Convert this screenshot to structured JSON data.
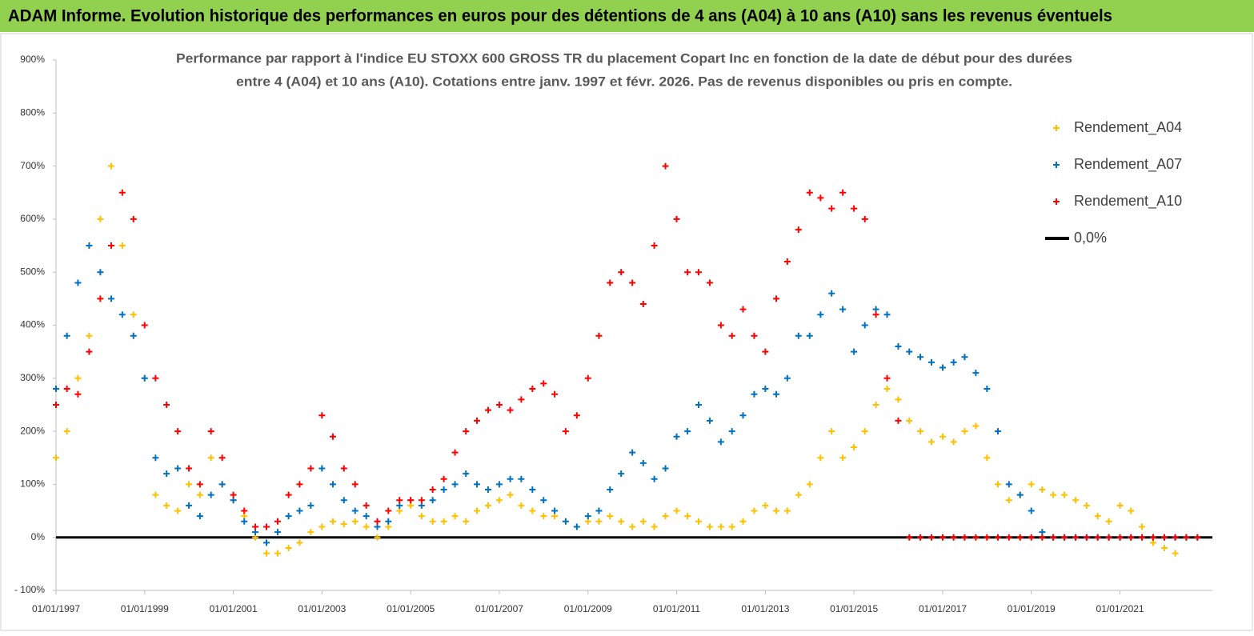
{
  "header": {
    "title": "ADAM Informe. Evolution historique des performances en euros pour des détentions de 4 ans (A04) à 10 ans (A10) sans les revenus éventuels"
  },
  "chart_data": {
    "type": "scatter",
    "title": "Performance par rapport à l'indice EU STOXX 600 GROSS TR  du placement Copart Inc en fonction de la date de début pour des durées",
    "subtitle": "entre 4 (A04) et 10 ans (A10). Cotations entre janv. 1997 et févr. 2026. Pas de revenus disponibles ou pris en compte.",
    "x": [
      "1997-01-01",
      "1997-04-01",
      "1997-07-01",
      "1997-10-01",
      "1998-01-01",
      "1998-04-01",
      "1998-07-01",
      "1998-10-01",
      "1999-01-01",
      "1999-04-01",
      "1999-07-01",
      "1999-10-01",
      "2000-01-01",
      "2000-04-01",
      "2000-07-01",
      "2000-10-01",
      "2001-01-01",
      "2001-04-01",
      "2001-07-01",
      "2001-10-01",
      "2002-01-01",
      "2002-04-01",
      "2002-07-01",
      "2002-10-01",
      "2003-01-01",
      "2003-04-01",
      "2003-07-01",
      "2003-10-01",
      "2004-01-01",
      "2004-04-01",
      "2004-07-01",
      "2004-10-01",
      "2005-01-01",
      "2005-04-01",
      "2005-07-01",
      "2005-10-01",
      "2006-01-01",
      "2006-04-01",
      "2006-07-01",
      "2006-10-01",
      "2007-01-01",
      "2007-04-01",
      "2007-07-01",
      "2007-10-01",
      "2008-01-01",
      "2008-04-01",
      "2008-07-01",
      "2008-10-01",
      "2009-01-01",
      "2009-04-01",
      "2009-07-01",
      "2009-10-01",
      "2010-01-01",
      "2010-04-01",
      "2010-07-01",
      "2010-10-01",
      "2011-01-01",
      "2011-04-01",
      "2011-07-01",
      "2011-10-01",
      "2012-01-01",
      "2012-04-01",
      "2012-07-01",
      "2012-10-01",
      "2013-01-01",
      "2013-04-01",
      "2013-07-01",
      "2013-10-01",
      "2014-01-01",
      "2014-04-01",
      "2014-07-01",
      "2014-10-01",
      "2015-01-01",
      "2015-04-01",
      "2015-07-01",
      "2015-10-01",
      "2016-01-01",
      "2016-04-01",
      "2016-07-01",
      "2016-10-01",
      "2017-01-01",
      "2017-04-01",
      "2017-07-01",
      "2017-10-01",
      "2018-01-01",
      "2018-04-01",
      "2018-07-01",
      "2018-10-01",
      "2019-01-01",
      "2019-04-01",
      "2019-07-01",
      "2019-10-01",
      "2020-01-01",
      "2020-04-01",
      "2020-07-01",
      "2020-10-01",
      "2021-01-01",
      "2021-04-01",
      "2021-07-01",
      "2021-10-01",
      "2022-01-01",
      "2022-04-01",
      "2022-07-01",
      "2022-10-01"
    ],
    "series": [
      {
        "name": "Rendement_A04",
        "color": "#ffc000",
        "values": [
          150,
          200,
          300,
          380,
          600,
          700,
          550,
          420,
          300,
          80,
          60,
          50,
          100,
          80,
          150,
          100,
          70,
          40,
          0,
          -30,
          -30,
          -20,
          -10,
          10,
          20,
          30,
          25,
          30,
          20,
          0,
          20,
          50,
          60,
          40,
          30,
          30,
          40,
          30,
          50,
          60,
          70,
          80,
          60,
          50,
          40,
          40,
          30,
          20,
          30,
          30,
          40,
          30,
          20,
          30,
          20,
          40,
          50,
          40,
          30,
          20,
          20,
          20,
          30,
          50,
          60,
          50,
          50,
          80,
          100,
          150,
          200,
          150,
          170,
          200,
          250,
          280,
          260,
          220,
          200,
          180,
          190,
          180,
          200,
          210,
          150,
          100,
          70,
          80,
          100,
          90,
          80,
          80,
          70,
          60,
          40,
          30,
          60,
          50,
          20,
          -10,
          -20,
          -30,
          null,
          null
        ]
      },
      {
        "name": "Rendement_A07",
        "color": "#0070c0",
        "values": [
          280,
          380,
          480,
          550,
          500,
          450,
          420,
          380,
          300,
          150,
          120,
          130,
          60,
          40,
          80,
          100,
          70,
          30,
          10,
          -10,
          10,
          40,
          50,
          60,
          130,
          100,
          70,
          50,
          40,
          20,
          30,
          60,
          70,
          60,
          70,
          90,
          100,
          120,
          100,
          90,
          100,
          110,
          110,
          90,
          70,
          50,
          30,
          20,
          40,
          50,
          90,
          120,
          160,
          140,
          110,
          130,
          190,
          200,
          250,
          220,
          180,
          200,
          230,
          270,
          280,
          270,
          300,
          380,
          380,
          420,
          460,
          430,
          350,
          400,
          430,
          420,
          360,
          350,
          340,
          330,
          320,
          330,
          340,
          310,
          280,
          200,
          100,
          80,
          50,
          10,
          0,
          0,
          0,
          0,
          0,
          0,
          0,
          0,
          0,
          0,
          0,
          0,
          0,
          0
        ]
      },
      {
        "name": "Rendement_A10",
        "color": "#ff0000",
        "values": [
          250,
          280,
          270,
          350,
          450,
          550,
          650,
          600,
          400,
          300,
          250,
          200,
          130,
          100,
          200,
          150,
          80,
          50,
          20,
          20,
          30,
          80,
          100,
          130,
          230,
          190,
          130,
          100,
          60,
          30,
          50,
          70,
          70,
          70,
          90,
          110,
          160,
          200,
          220,
          240,
          250,
          240,
          260,
          280,
          290,
          270,
          200,
          230,
          300,
          380,
          480,
          500,
          480,
          440,
          550,
          700,
          600,
          500,
          500,
          480,
          400,
          380,
          430,
          380,
          350,
          450,
          520,
          580,
          650,
          640,
          620,
          650,
          620,
          600,
          420,
          300,
          220,
          0,
          0,
          0,
          0,
          0,
          0,
          0,
          0,
          0,
          0,
          0,
          0,
          0,
          0,
          0,
          0,
          0,
          0,
          0,
          0,
          0,
          0,
          0,
          0,
          0,
          0,
          0
        ]
      }
    ],
    "reference_lines": [
      {
        "name": "0,0%",
        "value": 0,
        "color": "#000000"
      }
    ],
    "xlim": [
      "1997-01-01",
      "2023-02-01"
    ],
    "xticks": [
      {
        "value": "1997-01-01",
        "label": "01/01/1997"
      },
      {
        "value": "1999-01-01",
        "label": "01/01/1999"
      },
      {
        "value": "2001-01-01",
        "label": "01/01/2001"
      },
      {
        "value": "2003-01-01",
        "label": "01/01/2003"
      },
      {
        "value": "2005-01-01",
        "label": "01/01/2005"
      },
      {
        "value": "2007-01-01",
        "label": "01/01/2007"
      },
      {
        "value": "2009-01-01",
        "label": "01/01/2009"
      },
      {
        "value": "2011-01-01",
        "label": "01/01/2011"
      },
      {
        "value": "2013-01-01",
        "label": "01/01/2013"
      },
      {
        "value": "2015-01-01",
        "label": "01/01/2015"
      },
      {
        "value": "2017-01-01",
        "label": "01/01/2017"
      },
      {
        "value": "2019-01-01",
        "label": "01/01/2019"
      },
      {
        "value": "2021-01-01",
        "label": "01/01/2021"
      }
    ],
    "ylim": [
      -100,
      900
    ],
    "yticks": [
      {
        "value": -100,
        "label": "- 100%"
      },
      {
        "value": 0,
        "label": "0%"
      },
      {
        "value": 100,
        "label": "100%"
      },
      {
        "value": 200,
        "label": "200%"
      },
      {
        "value": 300,
        "label": "300%"
      },
      {
        "value": 400,
        "label": "400%"
      },
      {
        "value": 500,
        "label": "500%"
      },
      {
        "value": 600,
        "label": "600%"
      },
      {
        "value": 700,
        "label": "700%"
      },
      {
        "value": 800,
        "label": "800%"
      },
      {
        "value": 900,
        "label": "900%"
      }
    ],
    "grid": false,
    "legend": "top-right"
  }
}
